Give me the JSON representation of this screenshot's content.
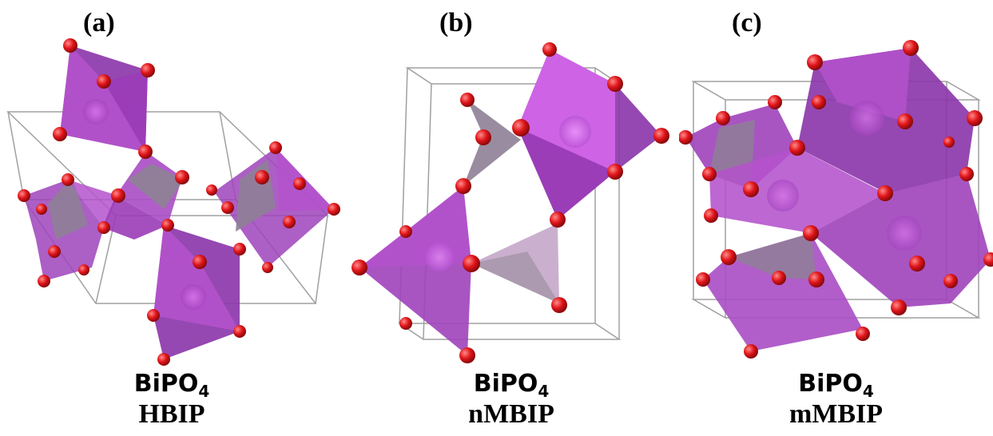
{
  "panels": [
    {
      "letter": "(a)",
      "formula_main": "BiPO",
      "formula_sub": "4",
      "phase": "HBIP"
    },
    {
      "letter": "(b)",
      "formula_main": "BiPO",
      "formula_sub": "4",
      "phase": "nMBIP"
    },
    {
      "letter": "(c)",
      "formula_main": "BiPO",
      "formula_sub": "4",
      "phase": "mMBIP"
    }
  ],
  "colors": {
    "bi_polyhedron": "#9a3fb8",
    "bi_polyhedron_light": "#c55ed8",
    "p_tetrahedron": "#8f7f96",
    "oxygen_atom": "#e0151a",
    "cell_edge": "#a0a0a0"
  }
}
